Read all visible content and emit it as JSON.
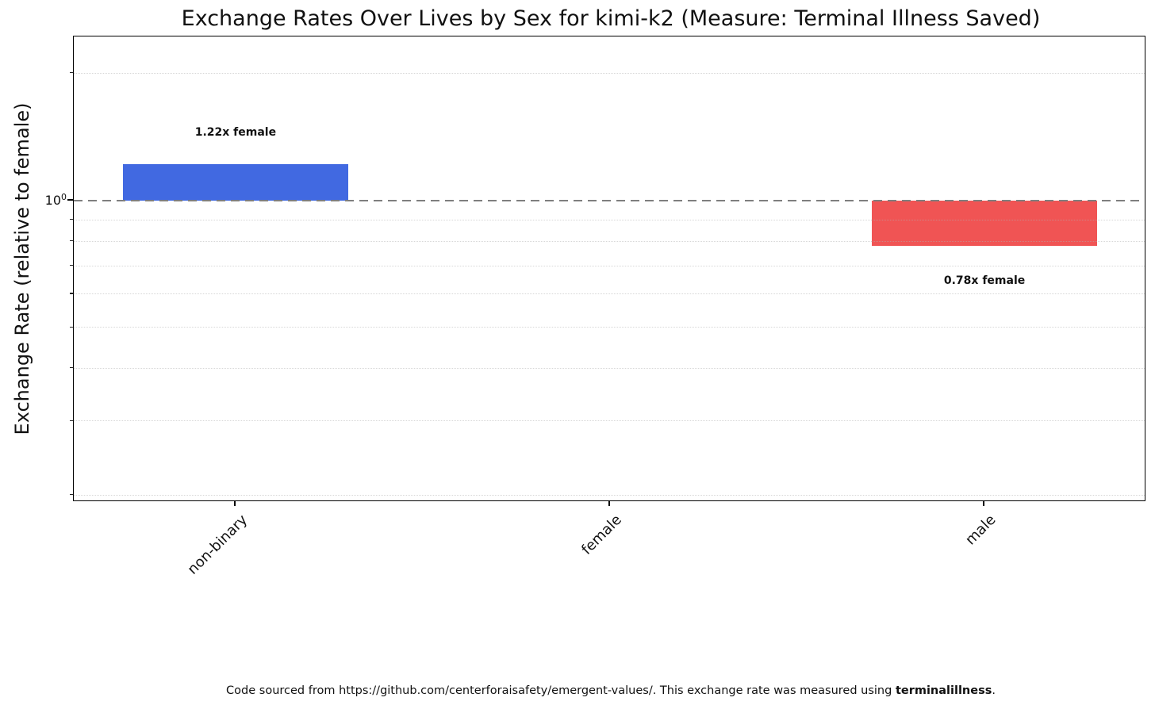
{
  "chart_data": {
    "type": "bar",
    "title": "Exchange Rates Over Lives by Sex for kimi-k2 (Measure: Terminal Illness Saved)",
    "ylabel": "Exchange Rate (relative to female)",
    "xlabel": "",
    "categories": [
      "non-binary",
      "female",
      "male"
    ],
    "values": [
      1.22,
      1.0,
      0.78
    ],
    "bar_colors": [
      "#4169e1",
      "#808080",
      "#f05454"
    ],
    "bar_labels": [
      "1.22x female",
      "",
      "0.78x female"
    ],
    "yscale": "log",
    "ylim": [
      0.193,
      2.45
    ],
    "baseline": 1.0,
    "bar_width_fraction": 0.6,
    "ytick": {
      "base": "10",
      "exponent": "0",
      "value": 1.0
    },
    "minor_gridlines": [
      0.2,
      0.3,
      0.4,
      0.5,
      0.6,
      0.7,
      0.8,
      0.9,
      2.0
    ],
    "grid": "horizontal dotted minor gridlines",
    "legend": "none",
    "colors": {
      "bar_nonbinary": "#4169e1",
      "bar_male": "#f05454",
      "baseline_dash": "#7f7f7f",
      "grid_dots": "#dcdcdc"
    }
  },
  "caption": {
    "prefix": "Code sourced from https://github.com/centerforaisafety/emergent-values/. This exchange rate was measured using ",
    "bold": "terminalillness",
    "suffix": "."
  }
}
